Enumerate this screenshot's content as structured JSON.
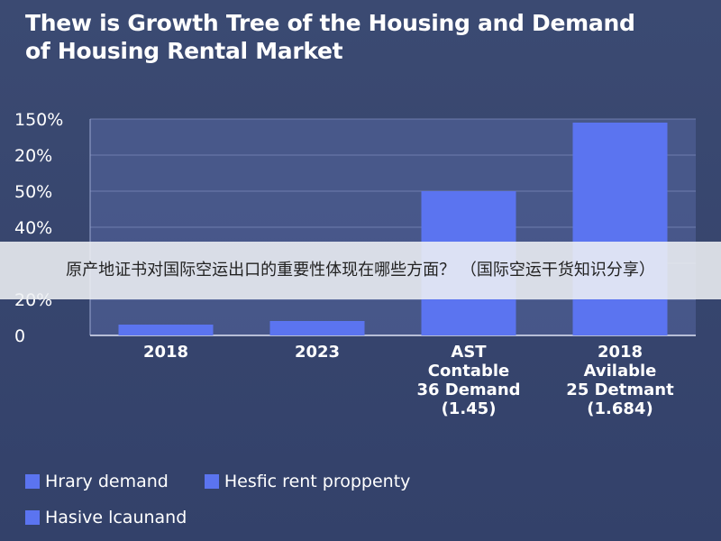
{
  "chart_data": {
    "type": "bar",
    "title_lines": [
      "Thew is Growth Tree of the Housing and Demand",
      "of Housing Rental Market"
    ],
    "y_ticks": [
      "0",
      "20%",
      "",
      "40%",
      "50%",
      "20%",
      "150%"
    ],
    "categories": [
      [
        "2018"
      ],
      [
        "2023"
      ],
      [
        "AST",
        "Contable",
        "36 Demand",
        "(1.45)"
      ],
      [
        "2018",
        "Avilable",
        "25 Detmant",
        "(1.684)"
      ]
    ],
    "values": [
      3,
      4,
      40,
      59
    ],
    "ylim": [
      0,
      60
    ],
    "grid": true,
    "bar_color": "#5b74f0",
    "legend": [
      "Hrary demand",
      "Hesfic rent proppenty",
      "Hasive lcaunand"
    ],
    "legend_position": "bottom-left"
  },
  "overlay_banner": {
    "text": "原产地证书对国际空运出口的重要性体现在哪些方面？ （国际空运干货知识分享）"
  }
}
